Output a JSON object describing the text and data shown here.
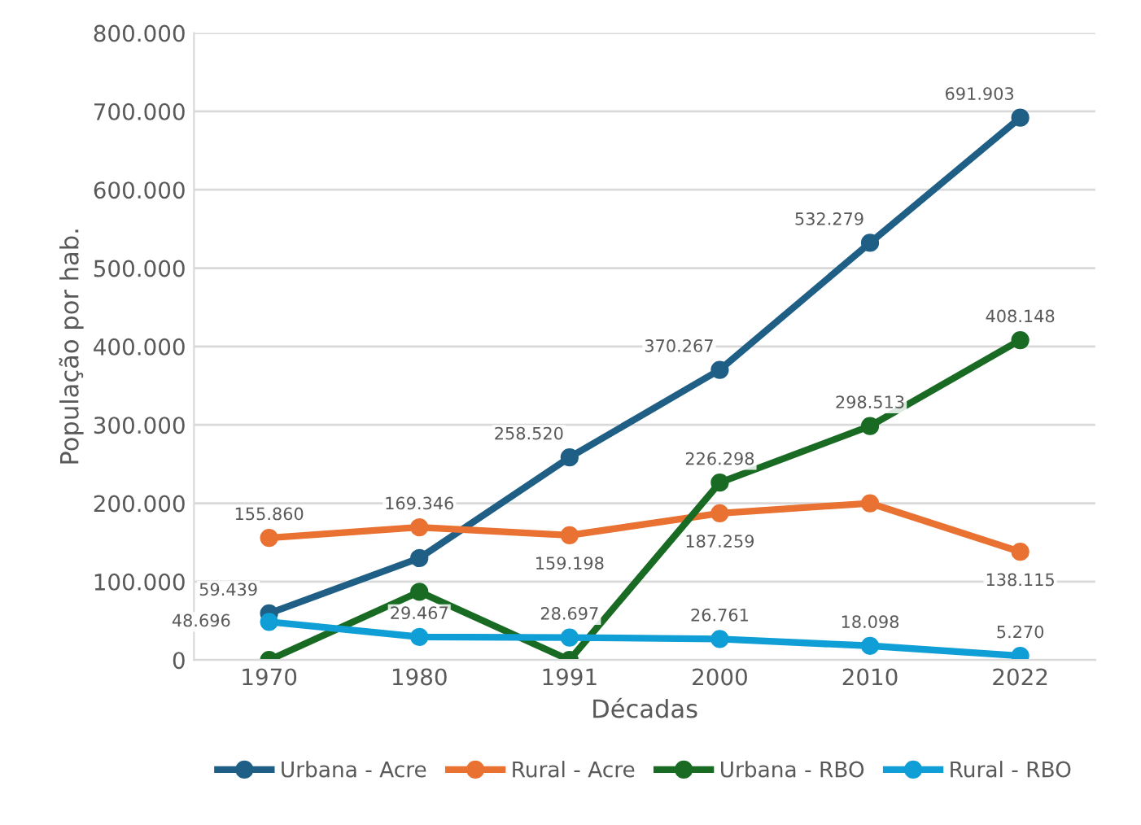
{
  "chart_data": {
    "type": "line",
    "xlabel": "Décadas",
    "ylabel": "População por hab.",
    "categories": [
      "1970",
      "1980",
      "1991",
      "2000",
      "2010",
      "2022"
    ],
    "series": [
      {
        "name": "Urbana - Acre",
        "color": "#1f5f86",
        "values": [
          59439,
          130000,
          258520,
          370267,
          532279,
          691903
        ],
        "value_labels": [
          "59.439",
          null,
          "258.520",
          "370.267",
          "532.279",
          "691.903"
        ]
      },
      {
        "name": "Rural - Acre",
        "color": "#e97132",
        "values": [
          155860,
          169346,
          159198,
          187259,
          200000,
          138115
        ],
        "value_labels": [
          "155.860",
          "169.346",
          "159.198",
          "187.259",
          null,
          "138.115"
        ]
      },
      {
        "name": "Urbana - RBO",
        "color": "#196b24",
        "values": [
          0,
          87000,
          0,
          226298,
          298513,
          408148
        ],
        "value_labels": [
          null,
          null,
          null,
          "226.298",
          "298.513",
          "408.148"
        ]
      },
      {
        "name": "Rural - RBO",
        "color": "#0f9ed5",
        "values": [
          48696,
          29467,
          28697,
          26761,
          18098,
          5270
        ],
        "value_labels": [
          "48.696",
          "29.467",
          "28.697",
          "26.761",
          "18.098",
          "5.270"
        ]
      }
    ],
    "ylim": [
      0,
      800000
    ],
    "yticks": [
      0,
      {
        "value": 100000,
        "label": "100.000"
      },
      {
        "value": 200000,
        "label": "200.000"
      },
      {
        "value": 300000,
        "label": "300.000"
      },
      {
        "value": 400000,
        "label": "400.000"
      },
      {
        "value": 500000,
        "label": "500.000"
      },
      {
        "value": 600000,
        "label": "600.000"
      },
      {
        "value": 700000,
        "label": "700.000"
      },
      {
        "value": 800000,
        "label": "800.000"
      }
    ],
    "grid": "y",
    "legend": "bottom",
    "marker": "circle",
    "line_style": "solid"
  }
}
